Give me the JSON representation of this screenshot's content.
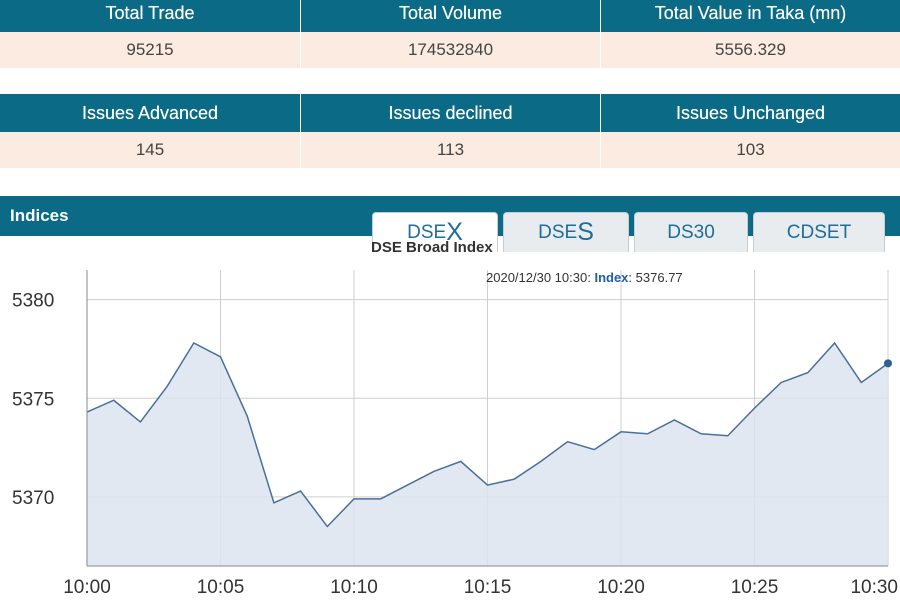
{
  "summary": {
    "row1": {
      "headers": [
        "Total Trade",
        "Total Volume",
        "Total Value in Taka (mn)"
      ],
      "values": [
        "95215",
        "174532840",
        "5556.329"
      ]
    },
    "row2": {
      "headers": [
        "Issues Advanced",
        "Issues declined",
        "Issues Unchanged"
      ],
      "values": [
        "145",
        "113",
        "103"
      ]
    }
  },
  "indices": {
    "title": "Indices",
    "tabs": [
      {
        "prefix": "DSE",
        "suffix": "X",
        "active": true
      },
      {
        "prefix": "DSE",
        "suffix": "S",
        "active": false
      },
      {
        "label": "DS30",
        "active": false
      },
      {
        "label": "CDSET",
        "active": false
      }
    ]
  },
  "tooltip": {
    "time": "2020/12/30 10:30:",
    "label": "Index",
    "value": "5376.77"
  },
  "colors": {
    "header_bg": "#0b6a86",
    "value_bg": "#fbebe0",
    "line": "#4a6f98",
    "fill": "#dde4ee",
    "tab_text": "#1f6d99"
  },
  "chart_data": {
    "type": "area",
    "title": "DSE Broad Index",
    "xlabel": "",
    "ylabel": "",
    "x": [
      "10:00",
      "10:01",
      "10:02",
      "10:03",
      "10:04",
      "10:05",
      "10:06",
      "10:07",
      "10:08",
      "10:09",
      "10:10",
      "10:11",
      "10:12",
      "10:13",
      "10:14",
      "10:15",
      "10:16",
      "10:17",
      "10:18",
      "10:19",
      "10:20",
      "10:21",
      "10:22",
      "10:23",
      "10:24",
      "10:25",
      "10:26",
      "10:27",
      "10:28",
      "10:29",
      "10:30"
    ],
    "series": [
      {
        "values": [
          5374.3,
          5374.9,
          5373.8,
          5375.6,
          5377.8,
          5377.1,
          5374.1,
          5369.7,
          5370.3,
          5368.5,
          5369.9,
          5369.9,
          5370.6,
          5371.3,
          5371.8,
          5370.6,
          5370.9,
          5371.8,
          5372.8,
          5372.4,
          5373.3,
          5373.2,
          5373.9,
          5373.2,
          5373.1,
          5374.5,
          5375.8,
          5376.3,
          5377.8,
          5375.8,
          5376.77
        ]
      }
    ],
    "y_ticks": [
      5370,
      5375,
      5380
    ],
    "x_ticks": [
      "10:00",
      "10:05",
      "10:10",
      "10:15",
      "10:20",
      "10:25",
      "10:30"
    ],
    "ylim": [
      5366.5,
      5381.5
    ],
    "grid": true,
    "marker_last": true
  }
}
